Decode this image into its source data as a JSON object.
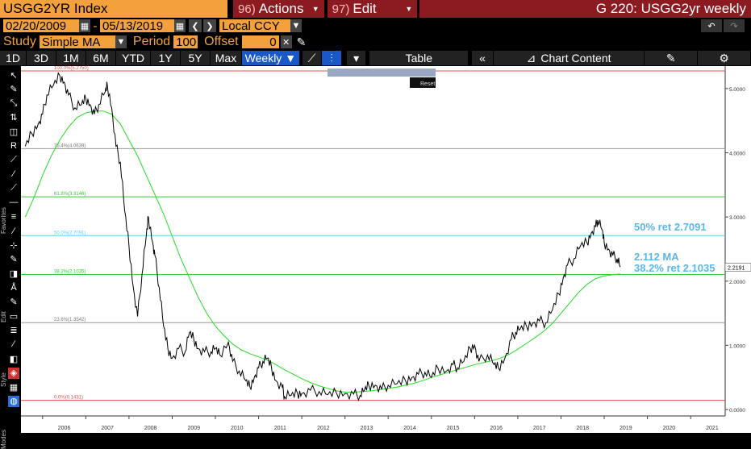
{
  "header": {
    "ticker": "USGG2YR Index",
    "actions_num": "96)",
    "actions_label": "Actions",
    "edit_num": "97)",
    "edit_label": "Edit",
    "window_title": "G 220: USGG2yr weekly"
  },
  "daterange": {
    "start": "02/20/2009",
    "end": "05/13/2019",
    "currency": "Local CCY"
  },
  "study": {
    "label": "Study",
    "value": "Simple MA",
    "period_label": "Period",
    "period_value": "100",
    "offset_label": "Offset",
    "offset_value": "0"
  },
  "periods": [
    "1D",
    "3D",
    "1M",
    "6M",
    "YTD",
    "1Y",
    "5Y",
    "Max"
  ],
  "frequency": "Weekly",
  "table_label": "Table",
  "chart_content_label": "Chart Content",
  "reset_label": "Reset",
  "side_labels": [
    "Favorites",
    "Edit",
    "Style",
    "Modes"
  ],
  "colors": {
    "accent": "#f2a13d",
    "tabred": "#8c1b21",
    "select": "#1a58c8",
    "price": "#000000",
    "ma": "#22dd22",
    "fib_red": "#e05050",
    "fib_green": "#33cc33",
    "fib_cyan": "#66ccee",
    "annotation": "#5ab8e8"
  },
  "chart_data": {
    "type": "line",
    "x_ticks": [
      "2006",
      "2007",
      "2008",
      "2009",
      "2010",
      "2011",
      "2012",
      "2013",
      "2014",
      "2015",
      "2016",
      "2017",
      "2018",
      "2019",
      "2020",
      "2021"
    ],
    "y_ticks": [
      "0.0000",
      "1.0000",
      "2.0000",
      "3.0000",
      "4.0000",
      "5.0000"
    ],
    "ylim": [
      -0.1,
      5.35
    ],
    "xlim": [
      2005.5,
      2021.8
    ],
    "last_value": "2.2191",
    "fib_levels": [
      {
        "label": "100.0%(5.2750)",
        "value": 5.275,
        "color": "red"
      },
      {
        "label": "76.4%(4.0639)",
        "value": 4.0639,
        "color": "grey"
      },
      {
        "label": "61.8%(3.3146)",
        "value": 3.3146,
        "color": "green"
      },
      {
        "label": "50.0%(2.7091)",
        "value": 2.7091,
        "color": "cyan"
      },
      {
        "label": "38.2%(2.1035)",
        "value": 2.1035,
        "color": "green"
      },
      {
        "label": "23.6%(1.3542)",
        "value": 1.3542,
        "color": "grey"
      },
      {
        "label": "0.0%(0.1431)",
        "value": 0.1431,
        "color": "red"
      }
    ],
    "annotations": [
      "50% ret 2.7091",
      "2.112  MA",
      "38.2% ret 2.1035"
    ],
    "series": [
      {
        "name": "USGG2YR",
        "values": [
          [
            2005.6,
            4.1
          ],
          [
            2005.75,
            4.3
          ],
          [
            2005.9,
            4.45
          ],
          [
            2006.0,
            4.6
          ],
          [
            2006.1,
            4.9
          ],
          [
            2006.25,
            5.05
          ],
          [
            2006.4,
            5.2
          ],
          [
            2006.5,
            5.1
          ],
          [
            2006.6,
            4.9
          ],
          [
            2006.75,
            4.7
          ],
          [
            2006.9,
            4.75
          ],
          [
            2007.0,
            4.85
          ],
          [
            2007.1,
            4.75
          ],
          [
            2007.2,
            4.6
          ],
          [
            2007.3,
            4.75
          ],
          [
            2007.45,
            4.95
          ],
          [
            2007.5,
            5.05
          ],
          [
            2007.6,
            4.7
          ],
          [
            2007.7,
            4.1
          ],
          [
            2007.8,
            3.85
          ],
          [
            2007.9,
            3.1
          ],
          [
            2008.0,
            2.55
          ],
          [
            2008.1,
            1.9
          ],
          [
            2008.2,
            1.45
          ],
          [
            2008.3,
            2.1
          ],
          [
            2008.4,
            2.7
          ],
          [
            2008.45,
            3.0
          ],
          [
            2008.55,
            2.6
          ],
          [
            2008.6,
            2.4
          ],
          [
            2008.7,
            1.9
          ],
          [
            2008.8,
            1.3
          ],
          [
            2008.9,
            0.95
          ],
          [
            2009.0,
            0.8
          ],
          [
            2009.15,
            0.95
          ],
          [
            2009.3,
            0.9
          ],
          [
            2009.4,
            1.2
          ],
          [
            2009.5,
            1.1
          ],
          [
            2009.6,
            0.95
          ],
          [
            2009.75,
            0.9
          ],
          [
            2009.9,
            0.9
          ],
          [
            2010.0,
            0.95
          ],
          [
            2010.1,
            0.85
          ],
          [
            2010.3,
            1.05
          ],
          [
            2010.4,
            0.75
          ],
          [
            2010.55,
            0.6
          ],
          [
            2010.7,
            0.45
          ],
          [
            2010.8,
            0.35
          ],
          [
            2010.9,
            0.5
          ],
          [
            2011.0,
            0.65
          ],
          [
            2011.1,
            0.75
          ],
          [
            2011.2,
            0.8
          ],
          [
            2011.3,
            0.65
          ],
          [
            2011.4,
            0.45
          ],
          [
            2011.55,
            0.35
          ],
          [
            2011.6,
            0.2
          ],
          [
            2011.75,
            0.22
          ],
          [
            2011.9,
            0.25
          ],
          [
            2012.0,
            0.25
          ],
          [
            2012.2,
            0.3
          ],
          [
            2012.4,
            0.28
          ],
          [
            2012.6,
            0.23
          ],
          [
            2012.8,
            0.26
          ],
          [
            2013.0,
            0.25
          ],
          [
            2013.2,
            0.24
          ],
          [
            2013.35,
            0.22
          ],
          [
            2013.45,
            0.3
          ],
          [
            2013.55,
            0.38
          ],
          [
            2013.7,
            0.38
          ],
          [
            2013.85,
            0.32
          ],
          [
            2014.0,
            0.38
          ],
          [
            2014.2,
            0.4
          ],
          [
            2014.4,
            0.45
          ],
          [
            2014.55,
            0.5
          ],
          [
            2014.7,
            0.55
          ],
          [
            2014.85,
            0.58
          ],
          [
            2015.0,
            0.5
          ],
          [
            2015.15,
            0.65
          ],
          [
            2015.35,
            0.6
          ],
          [
            2015.5,
            0.7
          ],
          [
            2015.6,
            0.65
          ],
          [
            2015.75,
            0.75
          ],
          [
            2015.9,
            0.95
          ],
          [
            2016.0,
            1.0
          ],
          [
            2016.1,
            0.75
          ],
          [
            2016.3,
            0.85
          ],
          [
            2016.45,
            0.7
          ],
          [
            2016.55,
            0.65
          ],
          [
            2016.7,
            0.8
          ],
          [
            2016.85,
            1.1
          ],
          [
            2016.95,
            1.2
          ],
          [
            2017.05,
            1.25
          ],
          [
            2017.2,
            1.3
          ],
          [
            2017.35,
            1.35
          ],
          [
            2017.5,
            1.38
          ],
          [
            2017.65,
            1.35
          ],
          [
            2017.8,
            1.55
          ],
          [
            2017.95,
            1.8
          ],
          [
            2018.05,
            2.05
          ],
          [
            2018.15,
            2.25
          ],
          [
            2018.3,
            2.35
          ],
          [
            2018.45,
            2.55
          ],
          [
            2018.6,
            2.6
          ],
          [
            2018.7,
            2.75
          ],
          [
            2018.8,
            2.85
          ],
          [
            2018.85,
            2.95
          ],
          [
            2018.95,
            2.8
          ],
          [
            2019.0,
            2.6
          ],
          [
            2019.1,
            2.5
          ],
          [
            2019.2,
            2.4
          ],
          [
            2019.3,
            2.35
          ],
          [
            2019.37,
            2.22
          ]
        ]
      },
      {
        "name": "Simple MA 100",
        "values": [
          [
            2005.6,
            3.0
          ],
          [
            2005.8,
            3.3
          ],
          [
            2006.0,
            3.65
          ],
          [
            2006.2,
            3.95
          ],
          [
            2006.4,
            4.2
          ],
          [
            2006.6,
            4.4
          ],
          [
            2006.8,
            4.55
          ],
          [
            2007.0,
            4.62
          ],
          [
            2007.2,
            4.65
          ],
          [
            2007.4,
            4.65
          ],
          [
            2007.6,
            4.6
          ],
          [
            2007.8,
            4.45
          ],
          [
            2008.0,
            4.2
          ],
          [
            2008.2,
            3.95
          ],
          [
            2008.4,
            3.65
          ],
          [
            2008.6,
            3.35
          ],
          [
            2008.8,
            3.05
          ],
          [
            2009.0,
            2.7
          ],
          [
            2009.2,
            2.35
          ],
          [
            2009.4,
            2.05
          ],
          [
            2009.6,
            1.75
          ],
          [
            2009.8,
            1.5
          ],
          [
            2010.0,
            1.3
          ],
          [
            2010.2,
            1.15
          ],
          [
            2010.4,
            1.02
          ],
          [
            2010.6,
            0.93
          ],
          [
            2010.8,
            0.87
          ],
          [
            2011.0,
            0.82
          ],
          [
            2011.2,
            0.77
          ],
          [
            2011.4,
            0.7
          ],
          [
            2011.6,
            0.62
          ],
          [
            2011.8,
            0.55
          ],
          [
            2012.0,
            0.48
          ],
          [
            2012.2,
            0.42
          ],
          [
            2012.4,
            0.37
          ],
          [
            2012.6,
            0.33
          ],
          [
            2012.8,
            0.29
          ],
          [
            2013.0,
            0.27
          ],
          [
            2013.2,
            0.27
          ],
          [
            2013.4,
            0.28
          ],
          [
            2013.6,
            0.29
          ],
          [
            2013.8,
            0.31
          ],
          [
            2014.0,
            0.33
          ],
          [
            2014.2,
            0.35
          ],
          [
            2014.4,
            0.38
          ],
          [
            2014.6,
            0.41
          ],
          [
            2014.8,
            0.45
          ],
          [
            2015.0,
            0.5
          ],
          [
            2015.2,
            0.54
          ],
          [
            2015.4,
            0.58
          ],
          [
            2015.6,
            0.62
          ],
          [
            2015.8,
            0.66
          ],
          [
            2016.0,
            0.7
          ],
          [
            2016.2,
            0.73
          ],
          [
            2016.4,
            0.76
          ],
          [
            2016.6,
            0.8
          ],
          [
            2016.8,
            0.86
          ],
          [
            2017.0,
            0.94
          ],
          [
            2017.2,
            1.03
          ],
          [
            2017.4,
            1.12
          ],
          [
            2017.6,
            1.22
          ],
          [
            2017.8,
            1.34
          ],
          [
            2018.0,
            1.5
          ],
          [
            2018.2,
            1.66
          ],
          [
            2018.4,
            1.82
          ],
          [
            2018.6,
            1.95
          ],
          [
            2018.8,
            2.04
          ],
          [
            2019.0,
            2.08
          ],
          [
            2019.2,
            2.1
          ],
          [
            2019.37,
            2.112
          ]
        ]
      }
    ]
  }
}
